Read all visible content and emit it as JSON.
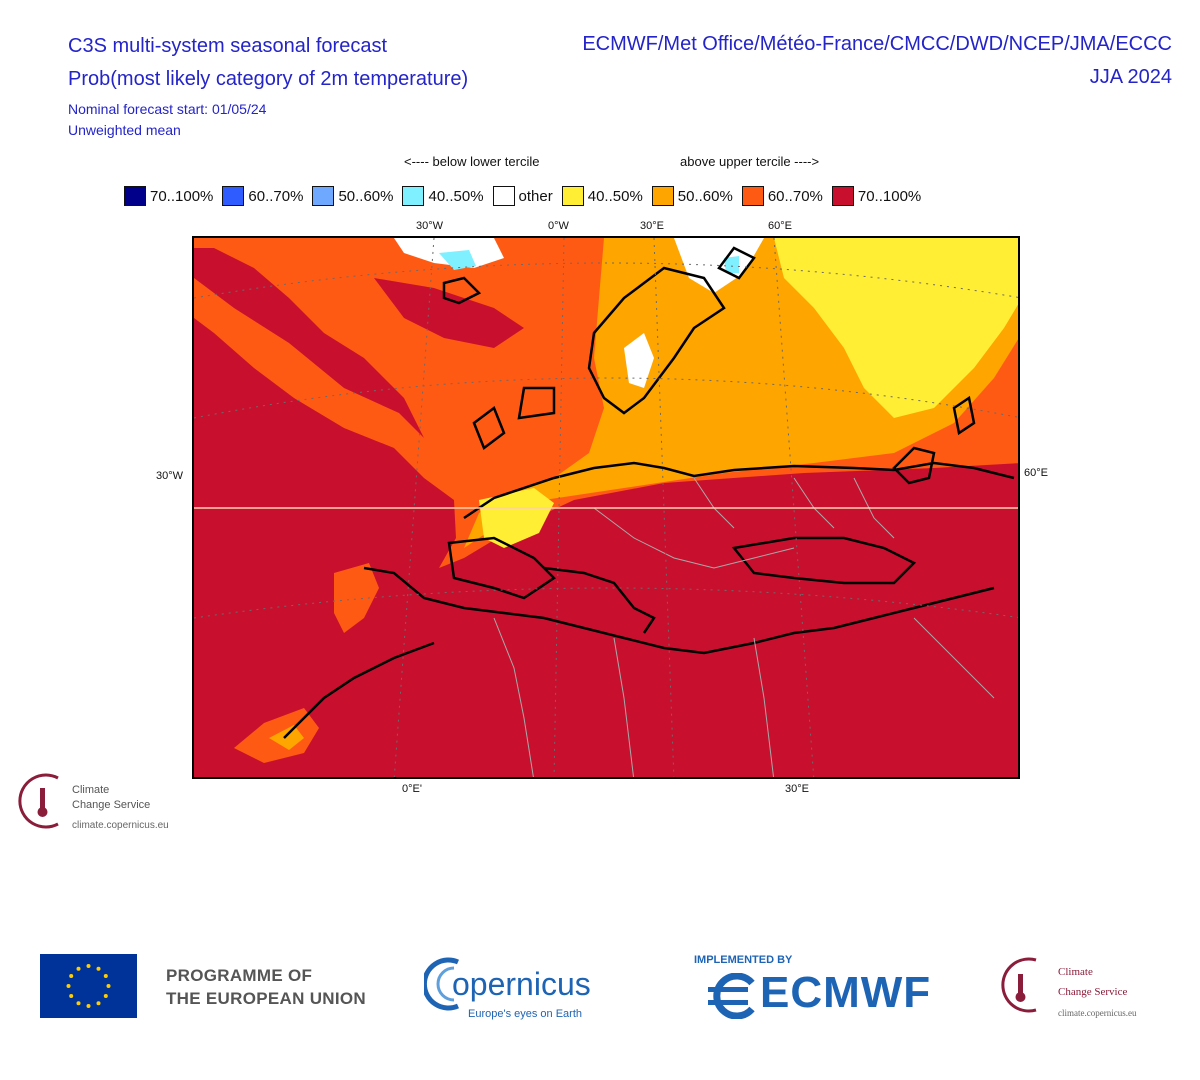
{
  "header": {
    "title_line1": "C3S multi-system seasonal forecast",
    "title_line2": "Prob(most likely category of 2m temperature)",
    "forecast_start": "Nominal forecast start: 01/05/24",
    "mean_type": "Unweighted mean",
    "models": "ECMWF/Met Office/Météo-France/CMCC/DWD/NCEP/JMA/ECCC",
    "season": "JJA 2024"
  },
  "legend": {
    "below_hint": "<---- below lower tercile",
    "above_hint": "above upper tercile ---->",
    "items": [
      {
        "label": "70..100%",
        "color": "#00008b"
      },
      {
        "label": "60..70%",
        "color": "#2f5cff"
      },
      {
        "label": "50..60%",
        "color": "#6fa8ff"
      },
      {
        "label": "40..50%",
        "color": "#7ff0ff"
      },
      {
        "label": "other",
        "color": "#ffffff"
      },
      {
        "label": "40..50%",
        "color": "#ffee33"
      },
      {
        "label": "50..60%",
        "color": "#ffa500"
      },
      {
        "label": "60..70%",
        "color": "#ff5a14"
      },
      {
        "label": "70..100%",
        "color": "#c8102e"
      }
    ]
  },
  "map": {
    "top_labels": [
      "30°W",
      "0°W",
      "30°E",
      "60°E"
    ],
    "left_label": "30°W",
    "right_label": "60°E",
    "bottom_labels": [
      "0°E'",
      "30°E"
    ],
    "colors": {
      "red": "#c8102e",
      "red_orange": "#ff5a14",
      "orange": "#ffa500",
      "yellow": "#ffee33",
      "white": "#ffffff",
      "cyan": "#7ff0ff"
    }
  },
  "branding": {
    "ccs_name_line1": "Climate",
    "ccs_name_line2": "Change Service",
    "ccs_url": "climate.copernicus.eu",
    "eu_line1": "PROGRAMME OF",
    "eu_line2": "THE EUROPEAN UNION",
    "copernicus_name": "opernicus",
    "copernicus_tagline": "Europe's eyes on Earth",
    "implemented_by": "IMPLEMENTED BY",
    "ecmwf_name": "ECMWF",
    "ccs_footer_line1": "Climate",
    "ccs_footer_line2": "Change Service",
    "ccs_footer_url": "climate.copernicus.eu"
  }
}
